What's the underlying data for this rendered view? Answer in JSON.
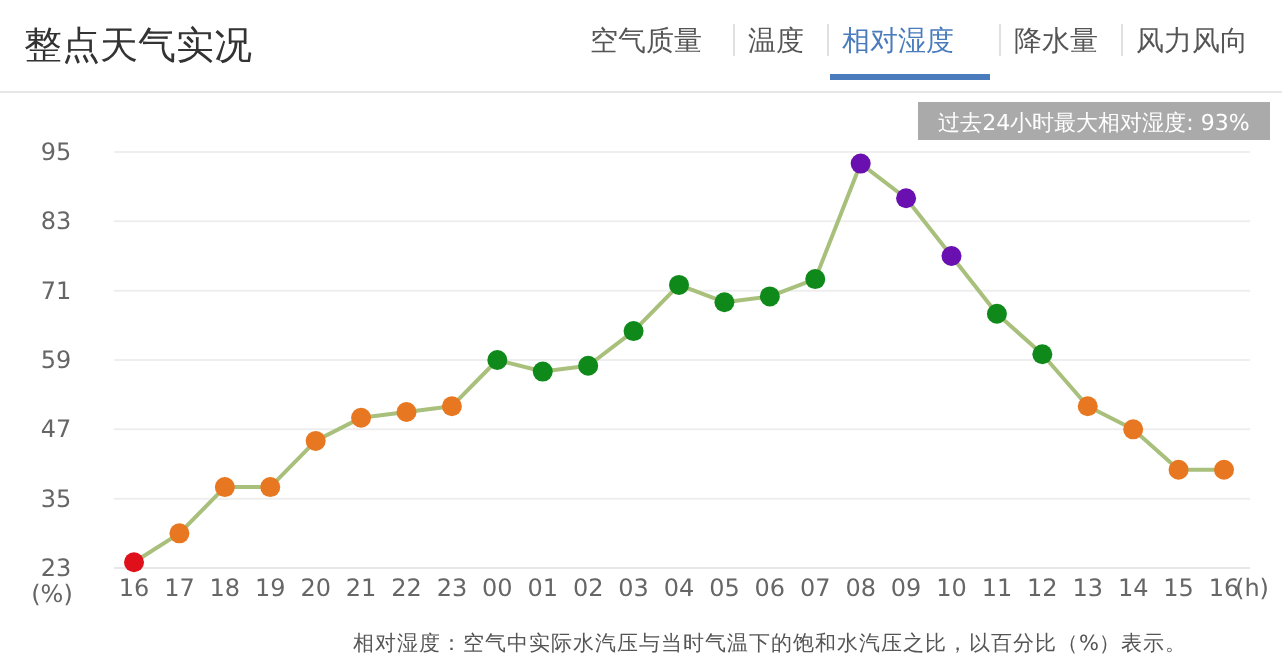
{
  "chart_data": {
    "type": "line",
    "title": "整点天气实况",
    "categories": [
      "16",
      "17",
      "18",
      "19",
      "20",
      "21",
      "22",
      "23",
      "00",
      "01",
      "02",
      "03",
      "04",
      "05",
      "06",
      "07",
      "08",
      "09",
      "10",
      "11",
      "12",
      "13",
      "14",
      "15",
      "16"
    ],
    "series": [
      {
        "color": "#a8c07c",
        "values": [
          24,
          29,
          37,
          37,
          45,
          49,
          50,
          51,
          59,
          57,
          58,
          64,
          72,
          69,
          70,
          73,
          93,
          87,
          77,
          67,
          60,
          51,
          47,
          40,
          40
        ],
        "colors": [
          "#e0101a",
          "#e87722",
          "#e87722",
          "#e87722",
          "#e87722",
          "#e87722",
          "#e87722",
          "#e87722",
          "#0f8a1a",
          "#0f8a1a",
          "#0f8a1a",
          "#0f8a1a",
          "#0f8a1a",
          "#0f8a1a",
          "#0f8a1a",
          "#0f8a1a",
          "#6a0fb0",
          "#6a0fb0",
          "#6a0fb0",
          "#0f8a1a",
          "#0f8a1a",
          "#e87722",
          "#e87722",
          "#e87722",
          "#e87722"
        ]
      }
    ],
    "ylim": [
      23,
      95
    ],
    "yticks": [
      23,
      35,
      47,
      59,
      71,
      83,
      95
    ],
    "grid": "y",
    "marker": "circle",
    "xlabel": "(h)",
    "ylabel": "(%)",
    "annotations": [
      "空气质量",
      "温度",
      "相对湿度",
      "降水量",
      "风力风向",
      "过去24小时最大相对湿度: 93%",
      "相对湿度：空气中实际水汽压与当时气温下的饱和水汽压之比，以百分比（%）表示。"
    ]
  }
}
